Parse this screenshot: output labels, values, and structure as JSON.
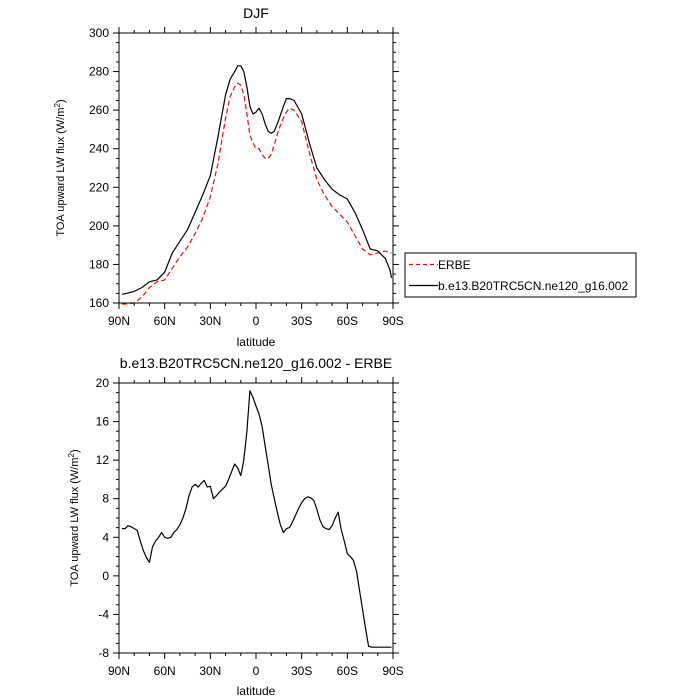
{
  "chart_data": [
    {
      "type": "line",
      "title": "DJF",
      "xlabel": "latitude",
      "ylabel": "TOA upward LW flux (W/m",
      "ylabel_sup": "2",
      "ylabel_end": ")",
      "xlim": [
        90,
        -90
      ],
      "ylim": [
        160,
        300
      ],
      "xticks": [
        90,
        60,
        30,
        0,
        -30,
        -60,
        -90
      ],
      "xtick_labels": [
        "90N",
        "60N",
        "30N",
        "0",
        "30S",
        "60S",
        "90S"
      ],
      "yticks": [
        160,
        180,
        200,
        220,
        240,
        260,
        280,
        300
      ],
      "ytick_labels": [
        "160",
        "180",
        "200",
        "220",
        "240",
        "260",
        "280",
        "300"
      ],
      "legend": "outside-right",
      "grid": false,
      "series": [
        {
          "name": "ERBE",
          "color": "#ff0000",
          "dash": "dashed",
          "x": [
            88,
            85,
            80,
            75,
            70,
            65,
            60,
            55,
            50,
            45,
            40,
            35,
            30,
            25,
            20,
            17,
            14,
            12,
            10,
            8,
            6,
            4,
            2,
            0,
            -2,
            -4,
            -6,
            -8,
            -10,
            -12,
            -15,
            -18,
            -20,
            -22,
            -25,
            -30,
            -35,
            -40,
            -45,
            -50,
            -55,
            -60,
            -65,
            -70,
            -75,
            -80,
            -85,
            -88,
            -89
          ],
          "y": [
            159.5,
            159.5,
            160,
            163,
            168,
            171,
            172,
            178,
            184,
            189,
            196,
            204,
            215,
            232,
            256,
            267,
            272,
            274,
            273,
            268,
            258,
            247,
            243,
            240,
            240,
            237,
            235,
            235,
            237,
            242,
            250,
            256,
            259,
            261,
            260,
            254,
            238,
            224,
            216,
            210,
            206,
            202,
            195,
            188,
            185,
            186,
            187,
            186,
            186
          ]
        },
        {
          "name": "b.e13.B20TRC5CN.ne120_g16.002",
          "color": "#000000",
          "dash": "solid",
          "x": [
            88,
            85,
            80,
            75,
            70,
            65,
            60,
            55,
            50,
            45,
            40,
            35,
            30,
            25,
            20,
            17,
            14,
            12,
            10,
            8,
            6,
            4,
            2,
            0,
            -2,
            -4,
            -6,
            -8,
            -10,
            -12,
            -15,
            -18,
            -20,
            -22,
            -25,
            -30,
            -35,
            -40,
            -45,
            -50,
            -55,
            -60,
            -65,
            -70,
            -75,
            -80,
            -85,
            -88,
            -89
          ],
          "y": [
            164.5,
            165,
            166,
            168,
            171,
            172,
            176,
            186,
            192,
            198,
            207,
            216,
            226,
            246,
            268,
            276,
            280,
            283,
            283,
            280,
            272,
            262,
            258,
            259,
            261,
            258,
            253,
            249,
            248,
            249,
            255,
            262,
            266,
            266,
            265,
            258,
            243,
            230,
            224,
            219,
            216,
            214,
            207,
            198,
            188,
            187,
            183,
            177,
            173
          ]
        }
      ]
    },
    {
      "type": "line",
      "title": "b.e13.B20TRC5CN.ne120_g16.002 - ERBE",
      "xlabel": "latitude",
      "ylabel": "TOA upward LW flux (W/m",
      "ylabel_sup": "2",
      "ylabel_end": ")",
      "xlim": [
        90,
        -90
      ],
      "ylim": [
        -8,
        20
      ],
      "xticks": [
        90,
        60,
        30,
        0,
        -30,
        -60,
        -90
      ],
      "xtick_labels": [
        "90N",
        "60N",
        "30N",
        "0",
        "30S",
        "60S",
        "90S"
      ],
      "yticks": [
        -8,
        -4,
        0,
        4,
        8,
        12,
        16,
        20
      ],
      "ytick_labels": [
        "-8",
        "-4",
        "0",
        "4",
        "8",
        "12",
        "16",
        "20"
      ],
      "grid": false,
      "series": [
        {
          "color": "#000000",
          "dash": "solid",
          "x": [
            88,
            86,
            84,
            82,
            80,
            78,
            76,
            74,
            72,
            70,
            68,
            66,
            64,
            62,
            60,
            58,
            56,
            54,
            52,
            50,
            48,
            46,
            44,
            42,
            40,
            38,
            36,
            34,
            32,
            30,
            28,
            26,
            24,
            22,
            20,
            18,
            16,
            14,
            12,
            10,
            8,
            6,
            4,
            2,
            0,
            -2,
            -4,
            -6,
            -8,
            -10,
            -12,
            -14,
            -16,
            -18,
            -20,
            -22,
            -24,
            -26,
            -28,
            -30,
            -32,
            -34,
            -36,
            -38,
            -40,
            -42,
            -44,
            -46,
            -48,
            -50,
            -52,
            -54,
            -56,
            -58,
            -60,
            -62,
            -64,
            -66,
            -68,
            -70,
            -72,
            -74,
            -76,
            -78,
            -80,
            -82,
            -84,
            -86,
            -88,
            -89
          ],
          "y": [
            4.9,
            4.9,
            5.2,
            5.1,
            4.9,
            4.7,
            3.6,
            2.6,
            1.9,
            1.4,
            3.0,
            3.6,
            4.0,
            4.5,
            4.0,
            3.9,
            4.0,
            4.5,
            4.8,
            5.3,
            6.0,
            7.0,
            8.3,
            9.2,
            9.5,
            9.2,
            9.6,
            9.9,
            9.2,
            9.3,
            8.0,
            8.3,
            8.7,
            9.0,
            9.3,
            10.0,
            10.8,
            11.6,
            11.2,
            10.4,
            12.0,
            15.0,
            19.2,
            18.5,
            17.6,
            16.8,
            15.5,
            13.5,
            11.5,
            9.5,
            8.0,
            6.6,
            5.3,
            4.5,
            4.9,
            5.0,
            5.6,
            6.3,
            7.0,
            7.6,
            8.0,
            8.2,
            8.1,
            7.8,
            6.9,
            5.8,
            5.1,
            4.9,
            4.8,
            5.2,
            6.0,
            6.6,
            4.8,
            3.6,
            2.3,
            2.0,
            1.6,
            0.5,
            -1.5,
            -3.5,
            -5.5,
            -7.3,
            -7.4,
            -7.4,
            -7.4,
            -7.4,
            -7.4,
            -7.4,
            -7.4,
            -7.4
          ]
        }
      ]
    }
  ]
}
